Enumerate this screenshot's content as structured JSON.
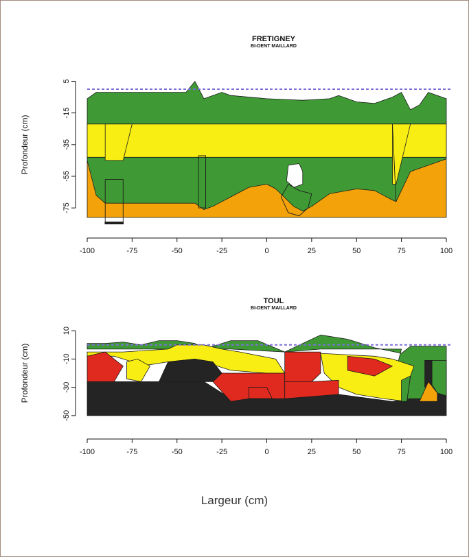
{
  "x_axis_label": "Largeur (cm)",
  "colors": {
    "green": "#3f9a35",
    "yellow": "#f8ee14",
    "orange": "#f3a20a",
    "red": "#e12a1f",
    "black": "#242424",
    "white": "#ffffff",
    "surface_line": "#7b6fd6"
  },
  "chart_data": [
    {
      "type": "diagram",
      "title": "FRETIGNEY",
      "subtitle": "BI-DENT MAILLARD",
      "ylabel": "Profondeur (cm)",
      "xlim": [
        -100,
        100
      ],
      "ylim": [
        -75,
        5
      ],
      "yrange": [
        -81,
        13
      ],
      "x_ticks": [
        -100,
        -75,
        -50,
        -25,
        0,
        25,
        50,
        75,
        100
      ],
      "y_ticks": [
        5,
        -15,
        -35,
        -55,
        -75
      ],
      "reference_line_y": 0,
      "layers": [
        {
          "name": "orange",
          "color": "orange",
          "points": [
            [
              -100,
              -45
            ],
            [
              -100,
              -81
            ],
            [
              100,
              -81
            ],
            [
              100,
              -44
            ]
          ]
        },
        {
          "name": "green-main",
          "color": "green",
          "points": [
            [
              -100,
              -6
            ],
            [
              -100,
              -45
            ],
            [
              -95,
              -67
            ],
            [
              -90,
              -72
            ],
            [
              -85,
              -72
            ],
            [
              -80,
              -72
            ],
            [
              -65,
              -72
            ],
            [
              -50,
              -72
            ],
            [
              -40,
              -72
            ],
            [
              -35,
              -76
            ],
            [
              -30,
              -74
            ],
            [
              -20,
              -68
            ],
            [
              -10,
              -62
            ],
            [
              0,
              -60
            ],
            [
              5,
              -63
            ],
            [
              15,
              -74
            ],
            [
              20,
              -77
            ],
            [
              25,
              -74
            ],
            [
              35,
              -66
            ],
            [
              50,
              -63
            ],
            [
              60,
              -64
            ],
            [
              70,
              -70
            ],
            [
              72,
              -71
            ],
            [
              80,
              -52
            ],
            [
              100,
              -44
            ],
            [
              100,
              -6
            ],
            [
              90,
              -2
            ],
            [
              85,
              -10
            ],
            [
              80,
              -13
            ],
            [
              75,
              -2
            ],
            [
              70,
              -5
            ],
            [
              60,
              -9
            ],
            [
              50,
              -8
            ],
            [
              40,
              -4
            ],
            [
              35,
              -6
            ],
            [
              20,
              -7
            ],
            [
              0,
              -6
            ],
            [
              -20,
              -4
            ],
            [
              -25,
              -2
            ],
            [
              -35,
              -6
            ],
            [
              -40,
              5
            ],
            [
              -45,
              -2
            ],
            [
              -50,
              -2
            ],
            [
              -80,
              -2
            ],
            [
              -90,
              -2
            ],
            [
              -95,
              -2
            ]
          ]
        },
        {
          "name": "yellow-band",
          "color": "yellow",
          "points": [
            [
              -100,
              -22
            ],
            [
              100,
              -22
            ],
            [
              100,
              -43
            ],
            [
              -100,
              -43
            ]
          ]
        },
        {
          "name": "yellow-left",
          "color": "yellow",
          "points": [
            [
              -90,
              -22
            ],
            [
              -75,
              -22
            ],
            [
              -80,
              -45
            ],
            [
              -90,
              -45
            ]
          ]
        },
        {
          "name": "yellow-right",
          "color": "yellow",
          "points": [
            [
              70,
              -22
            ],
            [
              80,
              -22
            ],
            [
              72,
              -60
            ],
            [
              70,
              -60
            ]
          ]
        },
        {
          "name": "white-pocket",
          "color": "white",
          "points": [
            [
              12,
              -48
            ],
            [
              18,
              -47
            ],
            [
              20,
              -52
            ],
            [
              20,
              -60
            ],
            [
              15,
              -62
            ],
            [
              11,
              -58
            ]
          ]
        }
      ],
      "outlines": [
        {
          "points": [
            [
              -90,
              -57
            ],
            [
              -80,
              -57
            ],
            [
              -80,
              -84
            ],
            [
              -90,
              -84
            ]
          ]
        },
        {
          "points": [
            [
              -38,
              -42
            ],
            [
              -34,
              -42
            ],
            [
              -34,
              -75
            ],
            [
              -38,
              -75
            ]
          ]
        },
        {
          "points": [
            [
              70,
              -22
            ],
            [
              72,
              -71
            ]
          ]
        },
        {
          "points": [
            [
              12,
              -60
            ],
            [
              18,
              -64
            ],
            [
              25,
              -66
            ],
            [
              23,
              -75
            ],
            [
              18,
              -80
            ],
            [
              12,
              -78
            ],
            [
              8,
              -68
            ]
          ]
        }
      ],
      "bars": [
        {
          "points": [
            [
              -90,
              -84
            ],
            [
              -80,
              -84
            ],
            [
              -80,
              -85
            ],
            [
              -90,
              -85
            ]
          ],
          "color": "black"
        }
      ]
    },
    {
      "type": "diagram",
      "title": "TOUL",
      "subtitle": "BI-DENT MAILLARD",
      "ylabel": "Profondeur (cm)",
      "xlim": [
        -100,
        100
      ],
      "ylim": [
        -50,
        10
      ],
      "yrange": [
        -52,
        12
      ],
      "x_ticks": [
        -100,
        -75,
        -50,
        -25,
        0,
        25,
        50,
        75,
        100
      ],
      "y_ticks": [
        10,
        -10,
        -30,
        -50
      ],
      "reference_line_y": 0,
      "layers": [
        {
          "name": "green-top",
          "color": "green",
          "points": [
            [
              -100,
              -3
            ],
            [
              -100,
              1
            ],
            [
              -90,
              1
            ],
            [
              -80,
              2
            ],
            [
              -70,
              0
            ],
            [
              -60,
              3
            ],
            [
              -50,
              3
            ],
            [
              -40,
              1
            ],
            [
              -35,
              -3
            ],
            [
              -20,
              3
            ],
            [
              -5,
              3
            ],
            [
              10,
              -5
            ],
            [
              30,
              7
            ],
            [
              45,
              4
            ],
            [
              60,
              -2
            ],
            [
              75,
              -6
            ],
            [
              80,
              -1
            ],
            [
              100,
              -1
            ],
            [
              100,
              -38
            ],
            [
              85,
              -40
            ],
            [
              80,
              -40
            ],
            [
              78,
              -40
            ],
            [
              70,
              -28
            ],
            [
              75,
              -3
            ],
            [
              60,
              -3
            ],
            [
              30,
              -3
            ],
            [
              10,
              -5
            ],
            [
              -20,
              -3
            ],
            [
              -50,
              -3
            ],
            [
              -75,
              -3
            ]
          ]
        },
        {
          "name": "black-base",
          "color": "black",
          "points": [
            [
              -100,
              -26
            ],
            [
              -60,
              -26
            ],
            [
              -35,
              -26
            ],
            [
              -20,
              -38
            ],
            [
              10,
              -38
            ],
            [
              40,
              -35
            ],
            [
              70,
              -40
            ],
            [
              80,
              -38
            ],
            [
              90,
              -38
            ],
            [
              95,
              -34
            ],
            [
              100,
              -36
            ],
            [
              100,
              -50
            ],
            [
              -100,
              -50
            ]
          ]
        },
        {
          "name": "yellow-main",
          "color": "yellow",
          "points": [
            [
              -100,
              -5
            ],
            [
              -80,
              -5
            ],
            [
              -55,
              -3
            ],
            [
              -50,
              0
            ],
            [
              -35,
              0
            ],
            [
              -25,
              -3
            ],
            [
              -15,
              -5
            ],
            [
              5,
              -10
            ],
            [
              10,
              -20
            ],
            [
              0,
              -20
            ],
            [
              -20,
              -18
            ],
            [
              -40,
              -10
            ],
            [
              -55,
              -12
            ],
            [
              -70,
              -15
            ],
            [
              -75,
              -12
            ],
            [
              -85,
              -8
            ],
            [
              -100,
              -8
            ]
          ]
        },
        {
          "name": "yellow-right",
          "color": "yellow",
          "points": [
            [
              30,
              -6
            ],
            [
              60,
              -8
            ],
            [
              70,
              -10
            ],
            [
              82,
              -15
            ],
            [
              80,
              -22
            ],
            [
              78,
              -40
            ],
            [
              65,
              -38
            ],
            [
              50,
              -35
            ],
            [
              40,
              -30
            ],
            [
              32,
              -20
            ]
          ]
        },
        {
          "name": "yellow-small",
          "color": "yellow",
          "points": [
            [
              -78,
              -12
            ],
            [
              -72,
              -10
            ],
            [
              -65,
              -15
            ],
            [
              -70,
              -26
            ],
            [
              -78,
              -24
            ]
          ]
        },
        {
          "name": "red-left",
          "color": "red",
          "points": [
            [
              -100,
              -8
            ],
            [
              -90,
              -5
            ],
            [
              -85,
              -10
            ],
            [
              -80,
              -15
            ],
            [
              -85,
              -26
            ],
            [
              -100,
              -26
            ]
          ]
        },
        {
          "name": "red-mid",
          "color": "red",
          "points": [
            [
              -25,
              -20
            ],
            [
              0,
              -20
            ],
            [
              10,
              -20
            ],
            [
              10,
              -38
            ],
            [
              -10,
              -38
            ],
            [
              -20,
              -40
            ],
            [
              -30,
              -26
            ]
          ]
        },
        {
          "name": "red-tall",
          "color": "red",
          "points": [
            [
              10,
              -5
            ],
            [
              30,
              -5
            ],
            [
              30,
              -20
            ],
            [
              25,
              -26
            ],
            [
              10,
              -26
            ]
          ]
        },
        {
          "name": "red-lower",
          "color": "red",
          "points": [
            [
              10,
              -26
            ],
            [
              25,
              -26
            ],
            [
              40,
              -25
            ],
            [
              40,
              -35
            ],
            [
              20,
              -37
            ],
            [
              10,
              -38
            ]
          ]
        },
        {
          "name": "red-right",
          "color": "red",
          "points": [
            [
              45,
              -8
            ],
            [
              60,
              -10
            ],
            [
              70,
              -15
            ],
            [
              60,
              -22
            ],
            [
              45,
              -18
            ]
          ]
        },
        {
          "name": "black-inner",
          "color": "black",
          "points": [
            [
              -55,
              -12
            ],
            [
              -40,
              -10
            ],
            [
              -30,
              -12
            ],
            [
              -25,
              -20
            ],
            [
              -30,
              -26
            ],
            [
              -60,
              -26
            ]
          ]
        },
        {
          "name": "black-right",
          "color": "black",
          "points": [
            [
              88,
              -11
            ],
            [
              92,
              -11
            ],
            [
              92,
              -28
            ],
            [
              88,
              -30
            ]
          ]
        },
        {
          "name": "orange-right",
          "color": "orange",
          "points": [
            [
              85,
              -40
            ],
            [
              90,
              -26
            ],
            [
              95,
              -34
            ],
            [
              95,
              -40
            ]
          ]
        },
        {
          "name": "green-right",
          "color": "green",
          "points": [
            [
              92,
              -11
            ],
            [
              100,
              -11
            ],
            [
              100,
              -36
            ],
            [
              95,
              -34
            ],
            [
              92,
              -28
            ]
          ]
        },
        {
          "name": "green-right-left",
          "color": "green",
          "points": [
            [
              75,
              -25
            ],
            [
              80,
              -22
            ],
            [
              78,
              -40
            ],
            [
              75,
              -40
            ]
          ]
        }
      ],
      "outlines": [
        {
          "points": [
            [
              -10,
              -30
            ],
            [
              0,
              -30
            ],
            [
              3,
              -38
            ],
            [
              -10,
              -38
            ]
          ]
        }
      ],
      "bars": []
    }
  ]
}
